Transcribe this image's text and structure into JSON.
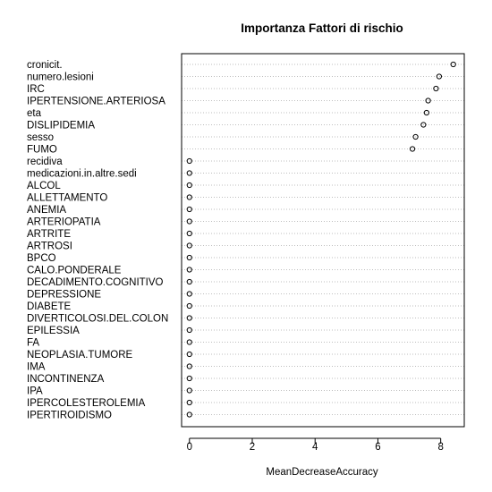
{
  "chart_data": {
    "type": "scatter",
    "title": "Importanza Fattori di rischio",
    "xlabel": "MeanDecreaseAccuracy",
    "ylabel": "",
    "xlim": [
      -0.25,
      8.75
    ],
    "xticks": [
      0,
      2,
      4,
      6,
      8
    ],
    "grid": "dotted horizontal guide lines per category",
    "colors": {
      "point_stroke": "#000000",
      "guide": "#bebebe",
      "frame": "#000000",
      "background": "#ffffff"
    },
    "categories": [
      "cronicit.",
      "numero.lesioni",
      "IRC",
      "IPERTENSIONE.ARTERIOSA",
      "eta",
      "DISLIPIDEMIA",
      "sesso",
      "FUMO",
      "recidiva",
      "medicazioni.in.altre.sedi",
      "ALCOL",
      "ALLETTAMENTO",
      "ANEMIA",
      "ARTERIOPATIA",
      "ARTRITE",
      "ARTROSI",
      "BPCO",
      "CALO.PONDERALE",
      "DECADIMENTO.COGNITIVO",
      "DEPRESSIONE",
      "DIABETE",
      "DIVERTICOLOSI.DEL.COLON",
      "EPILESSIA",
      "FA",
      "NEOPLASIA.TUMORE",
      "IMA",
      "INCONTINENZA",
      "IPA",
      "IPERCOLESTEROLEMIA",
      "IPERTIROIDISMO"
    ],
    "values": [
      8.4,
      7.95,
      7.85,
      7.6,
      7.55,
      7.45,
      7.2,
      7.1,
      0,
      0,
      0,
      0,
      0,
      0,
      0,
      0,
      0,
      0,
      0,
      0,
      0,
      0,
      0,
      0,
      0,
      0,
      0,
      0,
      0,
      0
    ]
  }
}
